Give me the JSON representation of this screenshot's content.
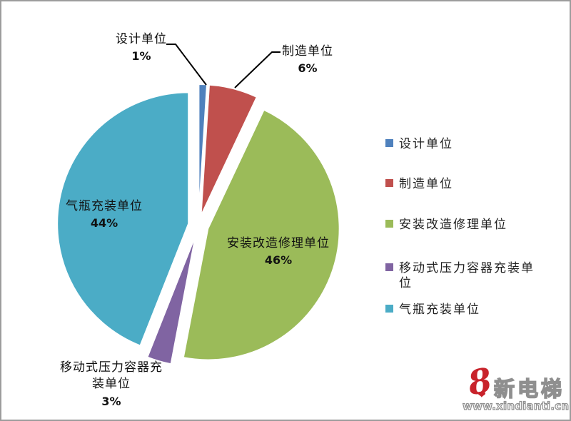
{
  "chart_data": {
    "type": "pie",
    "title": "",
    "legend_position": "right",
    "exploded": true,
    "slices": [
      {
        "label": "设计单位",
        "value": 1,
        "pct": "1%",
        "color": "#4F81BD"
      },
      {
        "label": "制造单位",
        "value": 6,
        "pct": "6%",
        "color": "#C0504D"
      },
      {
        "label": "安装改造修理单位",
        "value": 46,
        "pct": "46%",
        "color": "#9BBB59"
      },
      {
        "label": "移动式压力容器充装单位",
        "value": 3,
        "pct": "3%",
        "color": "#8064A2"
      },
      {
        "label": "气瓶充装单位",
        "value": 44,
        "pct": "44%",
        "color": "#4BACC6"
      }
    ]
  },
  "watermark": {
    "logo_glyph": "8",
    "brand": "新电梯",
    "url": "www.xindianti.cn",
    "logo_color": "#c8232b",
    "outline_color": "#8f8f8f"
  }
}
